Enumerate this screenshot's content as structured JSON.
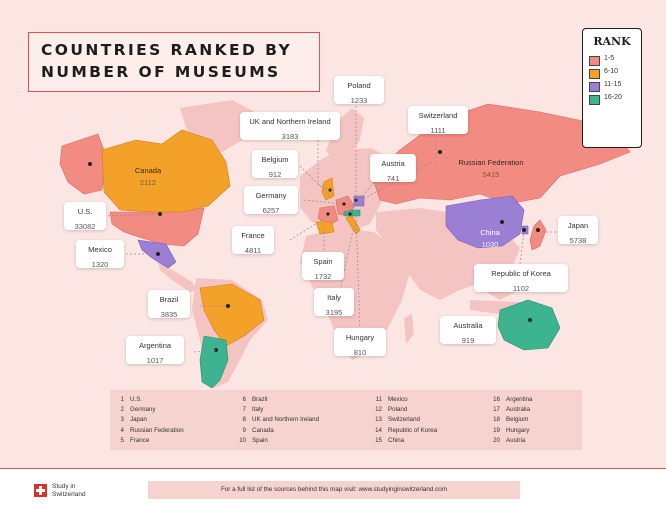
{
  "title": {
    "line1": "COUNTRIES RANKED BY",
    "line2": "NUMBER OF MUSEUMS"
  },
  "legend": {
    "title": "RANK",
    "items": [
      {
        "label": "1-5",
        "color": "#f28b82"
      },
      {
        "label": "6-10",
        "color": "#f4a12a"
      },
      {
        "label": "11-15",
        "color": "#9b7fd4"
      },
      {
        "label": "16-20",
        "color": "#3cb48f"
      }
    ],
    "compass": "compass-rose-icon"
  },
  "colors": {
    "background": "#fbe6e3",
    "land_default": "#f4c4c2",
    "rank_1_5": "#f28b82",
    "rank_6_10": "#f4a12a",
    "rank_11_15": "#9b7fd4",
    "rank_16_20": "#3cb48f",
    "accent": "#d9534f"
  },
  "callouts": {
    "poland": {
      "name": "Poland",
      "value": "1233"
    },
    "uk": {
      "name": "UK and Northern Ireland",
      "value": "3183"
    },
    "switzerland": {
      "name": "Switzerland",
      "value": "1111"
    },
    "belgium": {
      "name": "Belgium",
      "value": "912"
    },
    "austria": {
      "name": "Austria",
      "value": "741"
    },
    "germany": {
      "name": "Germany",
      "value": "6257"
    },
    "us": {
      "name": "U.S.",
      "value": "33082"
    },
    "france": {
      "name": "France",
      "value": "4811"
    },
    "mexico": {
      "name": "Mexico",
      "value": "1320"
    },
    "spain": {
      "name": "Spain",
      "value": "1732"
    },
    "japan": {
      "name": "Japan",
      "value": "5738"
    },
    "korea": {
      "name": "Republic of Korea",
      "value": "1102"
    },
    "brazil": {
      "name": "Brazil",
      "value": "3835"
    },
    "italy": {
      "name": "Italy",
      "value": "3195"
    },
    "argentina": {
      "name": "Argentina",
      "value": "1017"
    },
    "australia": {
      "name": "Australia",
      "value": "919"
    },
    "hungary": {
      "name": "Hungary",
      "value": "810"
    }
  },
  "map_labels": {
    "canada": {
      "name": "Canada",
      "value": "2112"
    },
    "russia": {
      "name": "Russian Federation",
      "value": "5415"
    },
    "china": {
      "name": "China",
      "value": "1030"
    }
  },
  "ranking_list": [
    [
      {
        "rank": "1",
        "country": "U.S."
      },
      {
        "rank": "2",
        "country": "Germany"
      },
      {
        "rank": "3",
        "country": "Japan"
      },
      {
        "rank": "4",
        "country": "Russian Federation"
      },
      {
        "rank": "5",
        "country": "France"
      }
    ],
    [
      {
        "rank": "6",
        "country": "Brazil"
      },
      {
        "rank": "7",
        "country": "Italy"
      },
      {
        "rank": "8",
        "country": "UK and Northern Ireland"
      },
      {
        "rank": "9",
        "country": "Canada"
      },
      {
        "rank": "10",
        "country": "Spain"
      }
    ],
    [
      {
        "rank": "11",
        "country": "Mexico"
      },
      {
        "rank": "12",
        "country": "Poland"
      },
      {
        "rank": "13",
        "country": "Switzerland"
      },
      {
        "rank": "14",
        "country": "Republic of Korea"
      },
      {
        "rank": "15",
        "country": "China"
      }
    ],
    [
      {
        "rank": "16",
        "country": "Argentina"
      },
      {
        "rank": "17",
        "country": "Australia"
      },
      {
        "rank": "18",
        "country": "Belgium"
      },
      {
        "rank": "19",
        "country": "Hungary"
      },
      {
        "rank": "20",
        "country": "Austria"
      }
    ]
  ],
  "footer": {
    "logo_line1": "Study in",
    "logo_line2": "Switzerland",
    "logo_icon": "swiss-cross-icon",
    "source": "For a full list of the sources behind this map visit: www.studyinginswitzerland.com"
  }
}
